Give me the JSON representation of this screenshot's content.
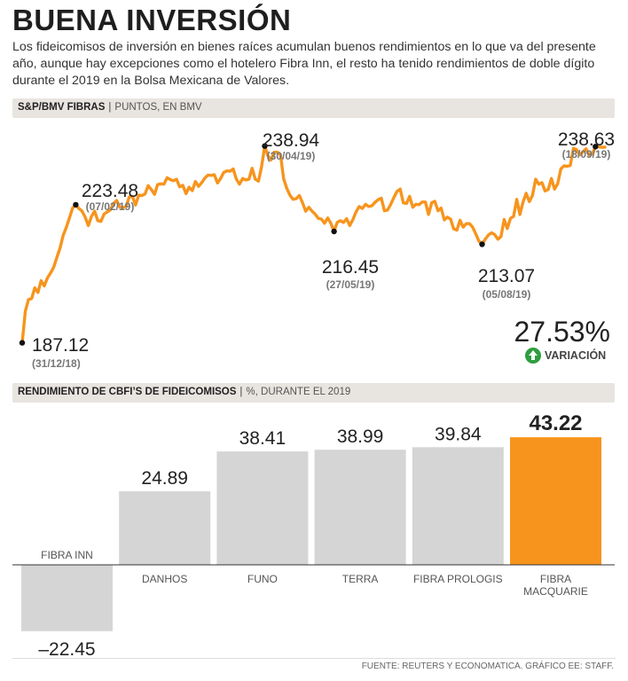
{
  "header": {
    "title": "BUENA INVERSIÓN",
    "subtitle": "Los fideicomisos de inversión en bienes raíces acumulan buenos rendimientos en lo que va del presente año, aunque hay excepciones como el hotelero Fibra Inn, el resto ha tenido rendimientos de doble dígito durante el 2019 en la Bolsa Mexicana de Valores."
  },
  "line_section": {
    "label": "S&P/BMV FIBRAS",
    "unit": "PUNTOS, EN BMV"
  },
  "variation": {
    "value": "27.53%",
    "label": "VARIACIÓN"
  },
  "bar_section": {
    "label": "RENDIMIENTO DE CBFI’S DE FIDEICOMISOS",
    "unit": "%, DURANTE EL 2019"
  },
  "source": "FUENTE: REUTERS Y ECONOMATICA. GRÁFICO EE: STAFF.",
  "colors": {
    "accent": "#f7941d",
    "bar": "#d5d5d5",
    "band": "#e8e4e0",
    "green": "#2e9e3e",
    "text": "#222222"
  },
  "chart_data": [
    {
      "type": "line",
      "title": "S&P/BMV FIBRAS",
      "ylabel": "PUNTOS, EN BMV",
      "ylim": [
        184,
        244
      ],
      "series": [
        {
          "name": "S&P/BMV FIBRAS",
          "values": [
            187.12,
            195.5,
            198.5,
            198.8,
            201.6,
            200.4,
            203.5,
            202.1,
            204.2,
            205.5,
            207.0,
            209.6,
            212.0,
            215.4,
            217.5,
            220.0,
            222.6,
            223.48,
            222.5,
            221.8,
            220.2,
            218.0,
            220.4,
            221.8,
            219.3,
            219.1,
            221.0,
            221.6,
            222.1,
            223.8,
            224.6,
            222.8,
            222.7,
            223.0,
            225.5,
            225.7,
            223.4,
            226.0,
            225.9,
            226.3,
            228.5,
            227.5,
            226.2,
            228.8,
            229.0,
            228.9,
            230.6,
            230.1,
            229.8,
            230.2,
            228.2,
            228.6,
            226.4,
            228.1,
            227.2,
            229.6,
            228.3,
            229.3,
            230.5,
            231.3,
            231.2,
            231.4,
            229.2,
            230.4,
            232.0,
            232.4,
            232.3,
            232.9,
            230.2,
            228.9,
            230.4,
            230.0,
            230.2,
            233.1,
            230.2,
            229.7,
            233.5,
            238.94,
            236.4,
            235.3,
            237.3,
            237.3,
            236.7,
            230.3,
            227.8,
            226.0,
            224.9,
            225.1,
            225.9,
            224.0,
            221.8,
            222.8,
            221.8,
            221.0,
            219.9,
            219.7,
            218.6,
            220.0,
            218.6,
            216.45,
            218.8,
            219.3,
            218.8,
            219.8,
            218.0,
            219.6,
            221.6,
            223.0,
            222.5,
            223.6,
            223.0,
            223.2,
            224.1,
            224.8,
            225.2,
            221.9,
            222.1,
            223.6,
            225.4,
            227.0,
            227.6,
            224.0,
            223.8,
            225.7,
            222.8,
            223.6,
            223.5,
            224.2,
            224.2,
            220.9,
            224.0,
            224.4,
            221.9,
            222.6,
            219.5,
            220.2,
            219.7,
            217.1,
            216.8,
            219.4,
            217.6,
            218.5,
            218.5,
            217.6,
            215.8,
            213.9,
            213.07,
            214.4,
            215.5,
            216.1,
            215.6,
            214.4,
            215.1,
            219.6,
            217.2,
            219.9,
            220.4,
            224.9,
            220.9,
            224.2,
            226.5,
            224.3,
            225.9,
            230.2,
            228.9,
            229.3,
            227.1,
            227.5,
            230.4,
            227.6,
            229.0,
            232.9,
            233.7,
            233.6,
            233.8,
            238.3,
            238.0,
            236.6,
            237.4,
            238.2,
            236.6,
            236.8,
            238.8,
            238.7,
            238.6,
            238.63
          ]
        }
      ],
      "annotations": [
        {
          "index": 0,
          "value": "187.12",
          "date": "(31/12/18)"
        },
        {
          "index": 17,
          "value": "223.48",
          "date": "(07/02/19)"
        },
        {
          "index": 77,
          "value": "238.94",
          "date": "(30/04/19)"
        },
        {
          "index": 99,
          "value": "216.45",
          "date": "(27/05/19)"
        },
        {
          "index": 146,
          "value": "213.07",
          "date": "(05/08/19)"
        },
        {
          "index": 182,
          "value": "238.63",
          "date": "(18/09/19)"
        }
      ]
    },
    {
      "type": "bar",
      "title": "RENDIMIENTO DE CBFI’S DE FIDEICOMISOS",
      "ylabel": "%, DURANTE EL 2019",
      "categories": [
        "FIBRA INN",
        "DANHOS",
        "FUNO",
        "TERRA",
        "FIBRA PROLOGIS",
        "FIBRA MACQUARIE"
      ],
      "values": [
        -22.45,
        24.89,
        38.41,
        38.99,
        39.84,
        43.22
      ],
      "value_labels": [
        "–22.45",
        "24.89",
        "38.41",
        "38.99",
        "39.84",
        "43.22"
      ],
      "highlight": "FIBRA MACQUARIE",
      "ylim": [
        -25,
        47
      ]
    }
  ]
}
